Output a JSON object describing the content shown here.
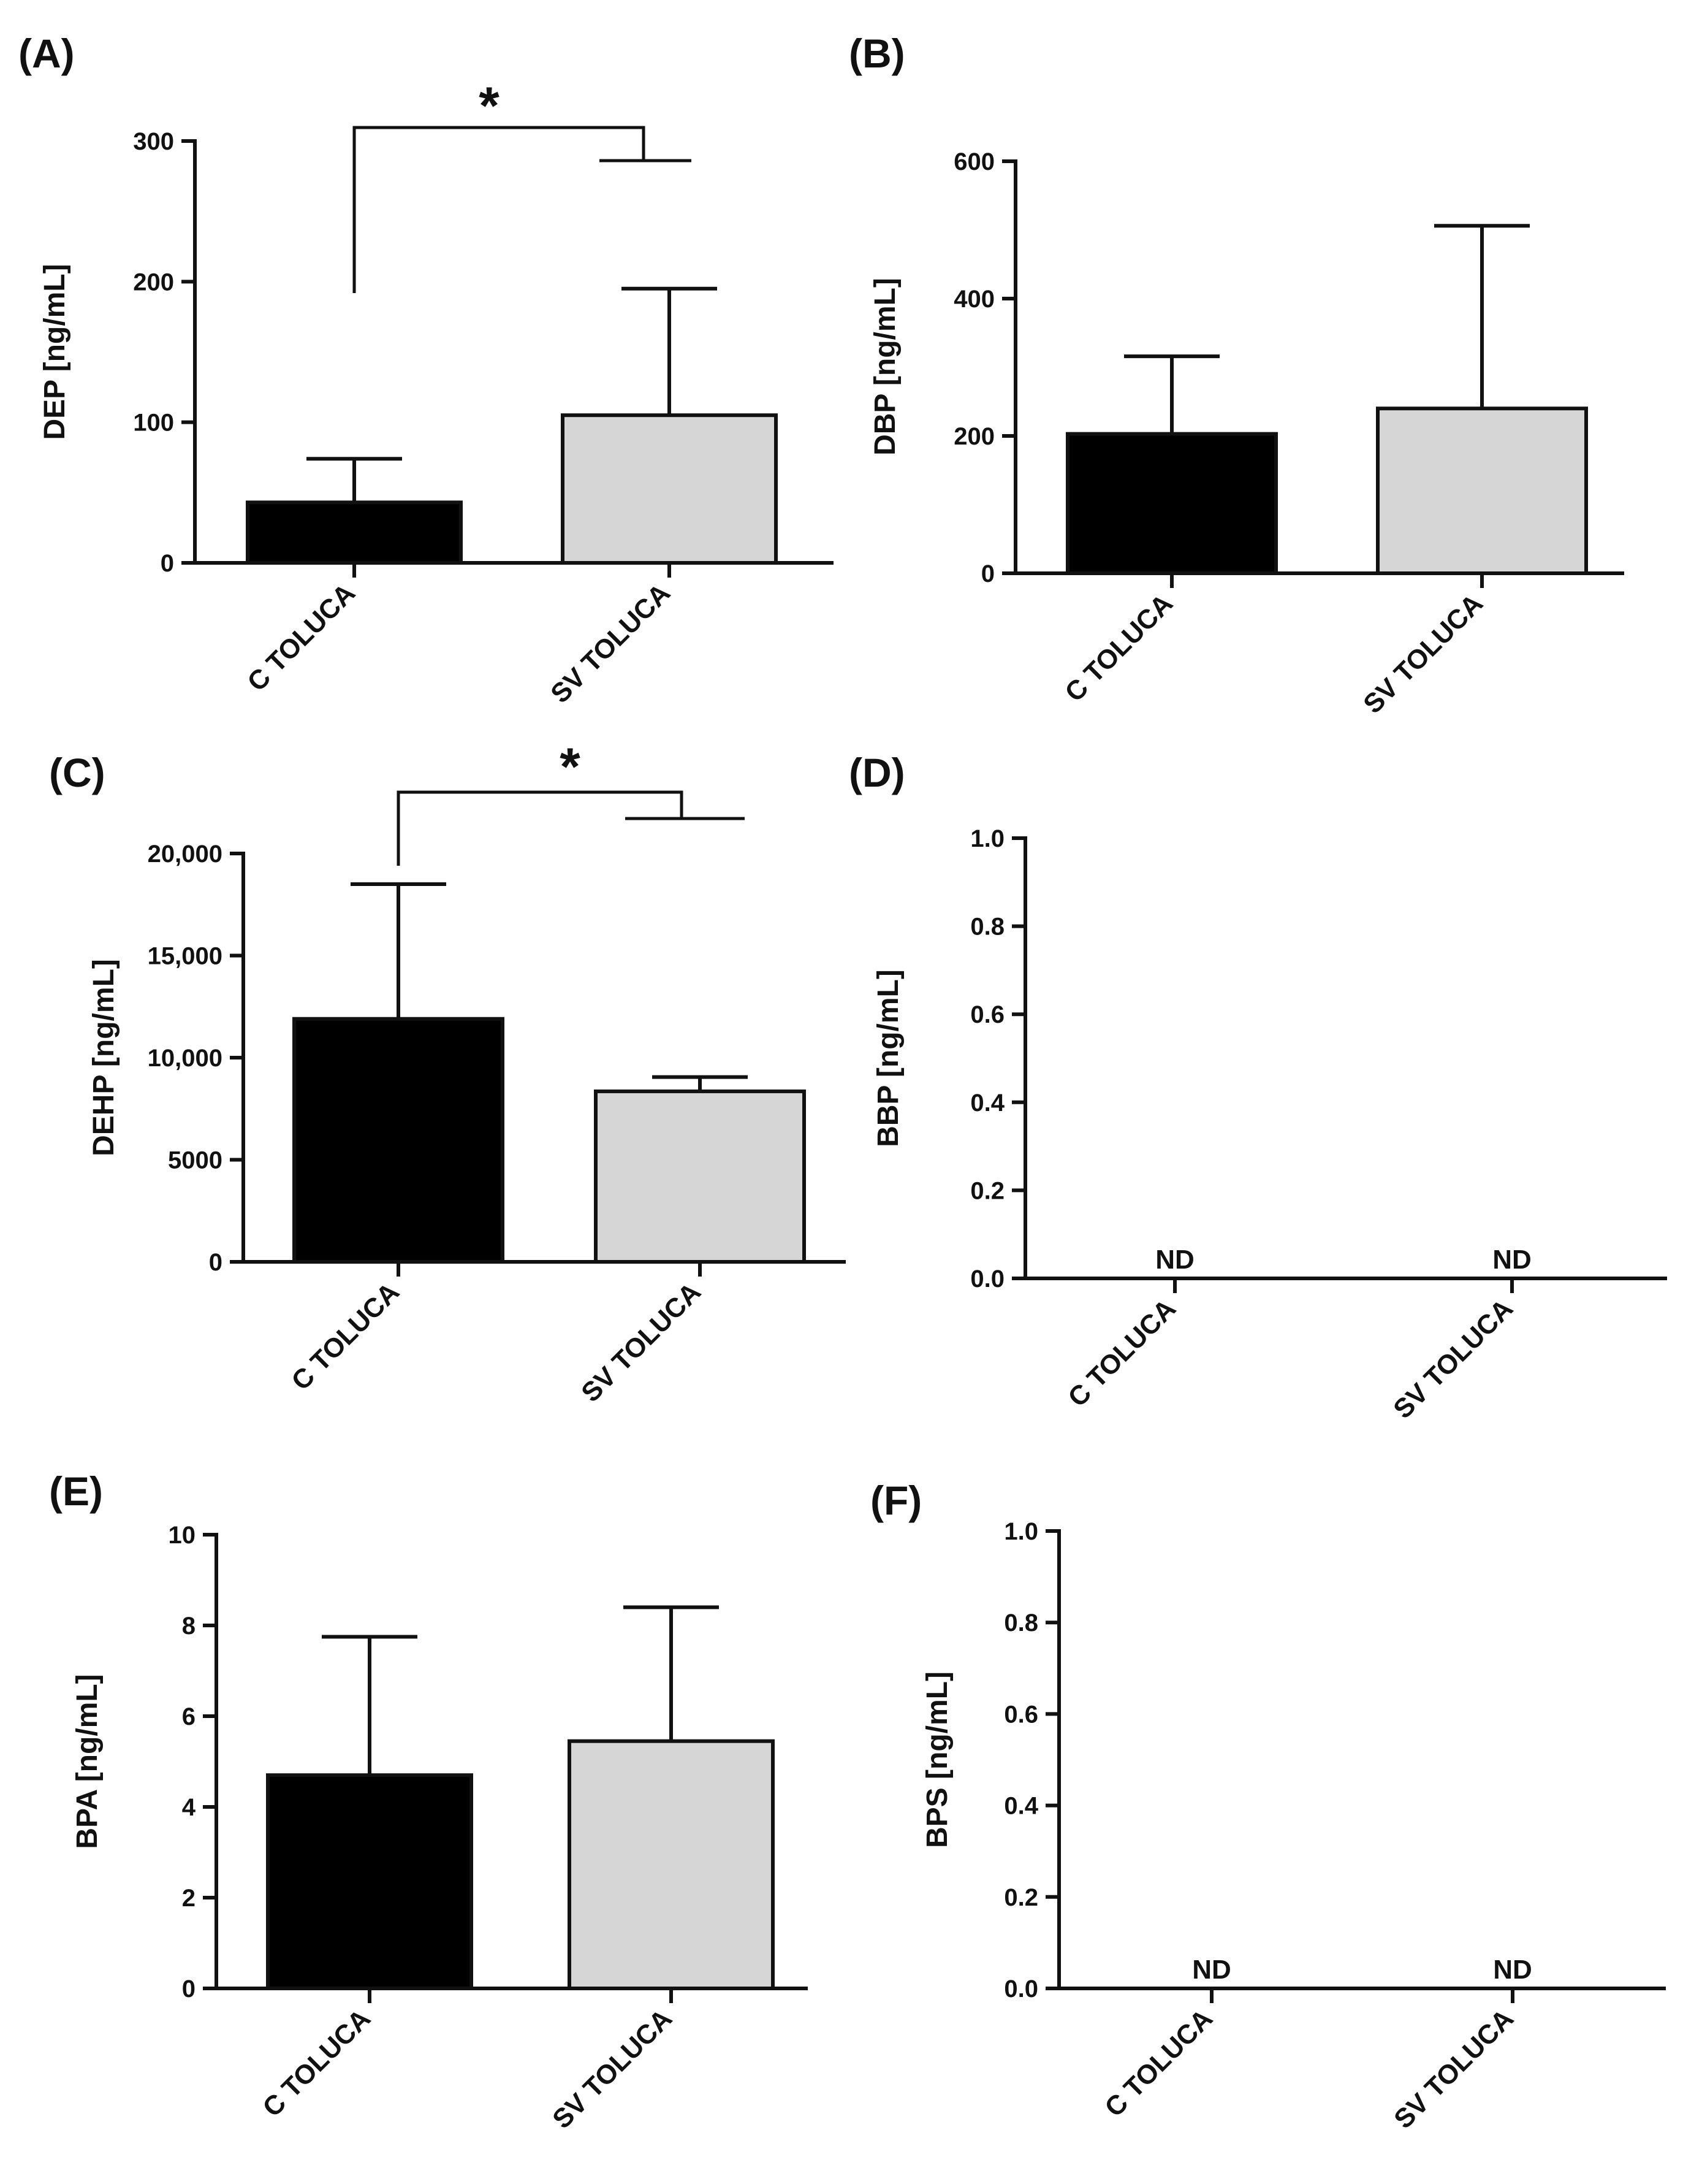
{
  "colors": {
    "c_toluca": "#000000",
    "sv_toluca": "#d6d6d6",
    "axis": "#111111"
  },
  "chart_data": [
    {
      "panel": "(A)",
      "type": "bar",
      "ylabel": "DEP [ng/mL]",
      "categories": [
        "C TOLUCA",
        "SV TOLUCA"
      ],
      "values": [
        43,
        105
      ],
      "errors": [
        31,
        90
      ],
      "ylim": [
        0,
        300
      ],
      "ticks": [
        0,
        100,
        200,
        300
      ],
      "tick_labels": [
        "0",
        "100",
        "200",
        "300"
      ],
      "significance": {
        "symbol": "*",
        "between": [
          "C TOLUCA",
          "SV TOLUCA"
        ]
      },
      "nd_labels": []
    },
    {
      "panel": "(B)",
      "type": "bar",
      "ylabel": "DBP [ng/mL]",
      "categories": [
        "C TOLUCA",
        "SV TOLUCA"
      ],
      "values": [
        203,
        240
      ],
      "errors": [
        113,
        266
      ],
      "ylim": [
        0,
        600
      ],
      "ticks": [
        0,
        200,
        400,
        600
      ],
      "tick_labels": [
        "0",
        "200",
        "400",
        "600"
      ],
      "nd_labels": []
    },
    {
      "panel": "(C)",
      "type": "bar",
      "ylabel": "DEHP [ng/mL]",
      "categories": [
        "C TOLUCA",
        "SV TOLUCA"
      ],
      "values": [
        11900,
        8350
      ],
      "errors": [
        6600,
        700
      ],
      "ylim": [
        0,
        20000
      ],
      "ticks": [
        0,
        5000,
        10000,
        15000,
        20000
      ],
      "tick_labels": [
        "0",
        "5000",
        "10,000",
        "15,000",
        "20,000"
      ],
      "significance": {
        "symbol": "*",
        "between": [
          "C TOLUCA",
          "SV TOLUCA"
        ]
      },
      "nd_labels": []
    },
    {
      "panel": "(D)",
      "type": "bar",
      "ylabel": "BBP [ng/mL]",
      "categories": [
        "C TOLUCA",
        "SV TOLUCA"
      ],
      "values": [
        0,
        0
      ],
      "errors": [
        0,
        0
      ],
      "ylim": [
        0,
        1
      ],
      "ticks": [
        0,
        0.2,
        0.4,
        0.6,
        0.8,
        1.0
      ],
      "tick_labels": [
        "0.0",
        "0.2",
        "0.4",
        "0.6",
        "0.8",
        "1.0"
      ],
      "nd_labels": [
        "ND",
        "ND"
      ]
    },
    {
      "panel": "(E)",
      "type": "bar",
      "ylabel": "BPA [ng/mL]",
      "categories": [
        "C TOLUCA",
        "SV TOLUCA"
      ],
      "values": [
        4.7,
        5.45
      ],
      "errors": [
        3.05,
        2.95
      ],
      "ylim": [
        0,
        10
      ],
      "ticks": [
        0,
        2,
        4,
        6,
        8,
        10
      ],
      "tick_labels": [
        "0",
        "2",
        "4",
        "6",
        "8",
        "10"
      ],
      "nd_labels": []
    },
    {
      "panel": "(F)",
      "type": "bar",
      "ylabel": "BPS [ng/mL]",
      "categories": [
        "C TOLUCA",
        "SV TOLUCA"
      ],
      "values": [
        0,
        0
      ],
      "errors": [
        0,
        0
      ],
      "ylim": [
        0,
        1
      ],
      "ticks": [
        0,
        0.2,
        0.4,
        0.6,
        0.8,
        1.0
      ],
      "tick_labels": [
        "0.0",
        "0.2",
        "0.4",
        "0.6",
        "0.8",
        "1.0"
      ],
      "nd_labels": [
        "ND",
        "ND"
      ]
    }
  ]
}
